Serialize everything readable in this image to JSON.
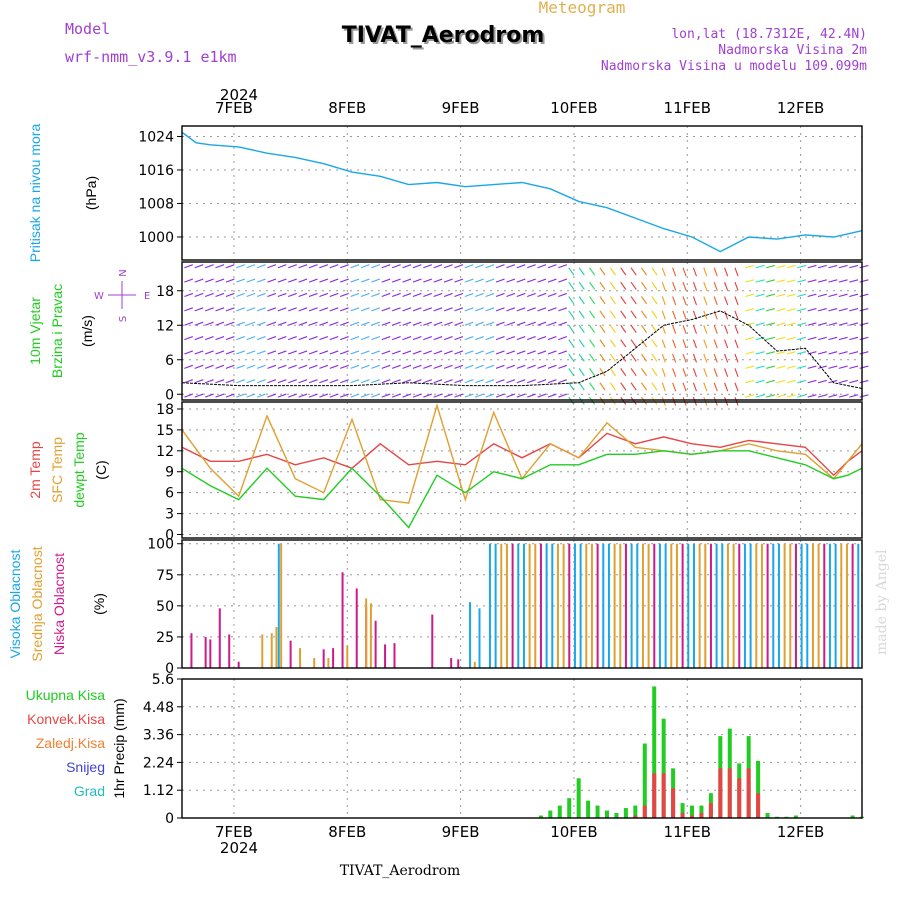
{
  "header": {
    "title": "TIVAT_Aerodrom",
    "subtitle": "Meteogram",
    "model_label": "Model",
    "model_name": "wrf-nmm_v3.9.1  e1km",
    "location": "lon,lat (18.7312E, 42.4N)",
    "elevation": "Nadmorska Visina 2m",
    "model_elevation": "Nadmorska Visina u modelu 109.099m",
    "watermark": "made by Angel",
    "footer": "TIVAT_Aerodrom",
    "year": "2024"
  },
  "colors": {
    "pressure": "#1aa7e8",
    "temp2m": "#e64545",
    "sfc": "#e0a030",
    "dewpt": "#22cc22",
    "high_cloud": "#1aa7e8",
    "mid_cloud": "#e0a030",
    "low_cloud": "#cc1a8c",
    "precip_total": "#22cc22",
    "precip_conv": "#e64545",
    "precip_frozen": "#f08030",
    "snow": "#4040dd",
    "hail": "#22bbbb",
    "wind_label": "#22cc22",
    "compass": "#a040d0",
    "header_purple": "#a040d0",
    "subtitle": "#e0b050"
  },
  "chart_data": {
    "x_axis": {
      "type": "date",
      "start": "2024-02-06T13:00",
      "end": "2024-02-12T13:00",
      "ticks": [
        "7FEB",
        "8FEB",
        "9FEB",
        "10FEB",
        "11FEB",
        "12FEB"
      ]
    },
    "panels": [
      {
        "type": "line",
        "ylabels": [
          "Pritisak na nivou mora",
          "(hPa)"
        ],
        "ylim": [
          994.5,
          1026.5
        ],
        "yticks": [
          "1000",
          "1008",
          "1016",
          "1024"
        ],
        "series": [
          {
            "key": "pressure",
            "x_hours": [
              0,
              3,
              6,
              12,
              18,
              24,
              30,
              36,
              42,
              48,
              54,
              60,
              66,
              72,
              78,
              84,
              90,
              96,
              102,
              108,
              114,
              120,
              126,
              132,
              138,
              144
            ],
            "values": [
              1025,
              1022.5,
              1022,
              1021.5,
              1020,
              1019,
              1017.5,
              1015.5,
              1014.5,
              1012.5,
              1013,
              1012,
              1012.5,
              1013,
              1011.5,
              1008.5,
              1007,
              1004.5,
              1002,
              1000,
              996.5,
              1000,
              999.5,
              1000.5,
              1000,
              1001.5
            ]
          }
        ]
      },
      {
        "type": "wind",
        "ylabels": [
          "10m Vjetar",
          "Brzina i Pravac",
          "(m/s)"
        ],
        "ylim": [
          -1,
          23
        ],
        "yticks": [
          "0",
          "6",
          "12",
          "18"
        ],
        "compass": {
          "n": "N",
          "s": "S",
          "e": "E",
          "w": "W"
        },
        "series": [
          {
            "name": "wind speed (m/s)",
            "x_hours": [
              0,
              12,
              24,
              36,
              48,
              60,
              72,
              84,
              90,
              96,
              102,
              108,
              114,
              120,
              126,
              132,
              138,
              144
            ],
            "values": [
              2,
              1.5,
              1.5,
              1.5,
              2,
              1.5,
              1.5,
              2,
              4,
              8,
              12,
              13,
              14.5,
              12,
              7.5,
              8,
              2,
              1
            ]
          }
        ]
      },
      {
        "type": "line",
        "ylabels": [
          "2m Temp",
          "SFC Temp",
          "dewpt Temp",
          "(C)"
        ],
        "ylim": [
          -0.5,
          19
        ],
        "yticks": [
          "0",
          "3",
          "6",
          "9",
          "12",
          "15",
          "18"
        ],
        "series": [
          {
            "key": "temp2m",
            "x_hours": [
              0,
              6,
              12,
              18,
              24,
              30,
              36,
              42,
              48,
              54,
              60,
              66,
              72,
              78,
              84,
              90,
              96,
              102,
              108,
              114,
              120,
              126,
              132,
              138,
              141,
              144
            ],
            "values": [
              12.5,
              10.5,
              10.5,
              11.5,
              10,
              11,
              9.5,
              13,
              10,
              10.5,
              10,
              13,
              11,
              13,
              11,
              14.5,
              13,
              14,
              13,
              12.5,
              13.5,
              13,
              12.5,
              8.5,
              10.5,
              12
            ]
          },
          {
            "key": "sfc",
            "x_hours": [
              0,
              6,
              12,
              18,
              24,
              30,
              36,
              42,
              48,
              54,
              60,
              66,
              72,
              78,
              84,
              90,
              96,
              102,
              108,
              114,
              120,
              126,
              132,
              138,
              141,
              144
            ],
            "values": [
              15,
              9.5,
              5.5,
              17,
              8,
              6,
              16.5,
              5,
              4.5,
              18.5,
              5,
              17.5,
              8,
              13,
              11,
              16,
              12.5,
              12,
              11.5,
              12,
              13,
              12,
              11.5,
              8,
              10.5,
              13
            ]
          },
          {
            "key": "dewpt",
            "x_hours": [
              0,
              6,
              12,
              18,
              24,
              30,
              36,
              42,
              48,
              54,
              60,
              66,
              72,
              78,
              84,
              90,
              96,
              102,
              108,
              114,
              120,
              126,
              132,
              138,
              141,
              144
            ],
            "values": [
              9.5,
              7,
              5,
              9.5,
              5.5,
              5,
              9.5,
              5.5,
              1,
              8.5,
              6,
              9,
              8,
              10,
              10,
              11.5,
              11.5,
              12,
              11.5,
              12,
              12,
              11,
              10,
              8,
              8.5,
              9.5
            ]
          }
        ]
      },
      {
        "type": "bar",
        "ylabels": [
          "Visoka Oblacnost",
          "Srednja Oblacnost",
          "Niska Oblacnost",
          "(%)"
        ],
        "ylim": [
          0,
          103
        ],
        "yticks": [
          "0",
          "25",
          "50",
          "75",
          "100"
        ],
        "series": [
          {
            "key": "low_cloud",
            "x_hours": [
              2,
              5,
              6,
              8,
              10,
              12,
              23,
              30,
              32,
              34,
              37,
              39,
              41,
              43,
              45,
              53,
              57,
              58.5
            ],
            "values": [
              28,
              25,
              23,
              48,
              27,
              5,
              22,
              15,
              16,
              77,
              64,
              49,
              38,
              19,
              20,
              43,
              8,
              7
            ]
          },
          {
            "key": "mid_cloud",
            "x_hours": [
              17,
              19,
              20,
              21,
              25,
              28,
              31,
              35,
              39,
              40,
              62
            ],
            "values": [
              27,
              28,
              33,
              100,
              16,
              8,
              8,
              18,
              56,
              52,
              5
            ]
          },
          {
            "key": "high_cloud",
            "x_hours": [
              20.5,
              61,
              63
            ],
            "values": [
              100,
              53,
              48
            ]
          },
          {
            "key": "overcast_period",
            "x_hours": [
              65,
              144
            ],
            "values": [
              100,
              100
            ]
          }
        ]
      },
      {
        "type": "bar",
        "ylabels": [
          "1hr Precip",
          "(mm)"
        ],
        "ylim": [
          0,
          5.6
        ],
        "yticks": [
          "0",
          "1.12",
          "2.24",
          "3.36",
          "4.48",
          "5.6"
        ],
        "legend": [
          "Ukupna Kisa",
          "Konvek.Kisa",
          "Zaledj.Kisa",
          "Snijeg",
          "Grad"
        ],
        "series": [
          {
            "key": "precip_total",
            "x_hours": [
              76,
              78,
              80,
              82,
              84,
              86,
              88,
              90,
              92,
              94,
              96,
              98,
              100,
              102,
              104,
              106,
              108,
              110,
              112,
              114,
              116,
              118,
              120,
              122,
              124,
              126,
              128,
              130,
              132,
              134,
              136,
              138,
              140,
              142,
              144
            ],
            "values": [
              0.1,
              0.3,
              0.5,
              0.8,
              1.6,
              0.7,
              0.5,
              0.3,
              0.2,
              0.4,
              0.5,
              3.0,
              5.3,
              4.0,
              2.0,
              0.6,
              0.5,
              0.5,
              1.0,
              3.3,
              3.6,
              2.2,
              3.3,
              2.3,
              0.2,
              0.05,
              0.05,
              0.1,
              0,
              0,
              0,
              0,
              0,
              0.1,
              0.05
            ]
          },
          {
            "key": "precip_conv",
            "x_hours": [
              96,
              98,
              100,
              102,
              104,
              106,
              108,
              110,
              112,
              114,
              116,
              118,
              120,
              122
            ],
            "values": [
              0.1,
              0.5,
              1.8,
              1.8,
              1.2,
              0.2,
              0.1,
              0.2,
              0.6,
              2.0,
              2.0,
              1.6,
              2.0,
              1.0
            ]
          }
        ]
      }
    ]
  }
}
